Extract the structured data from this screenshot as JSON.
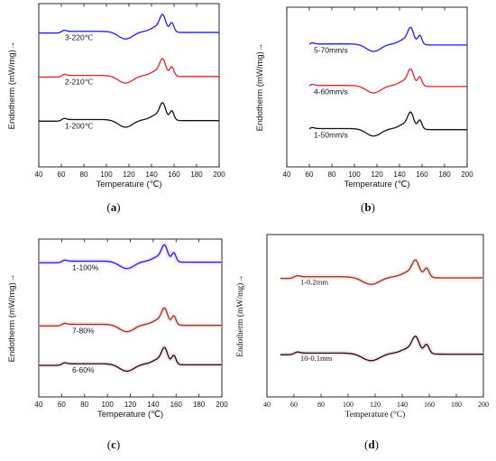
{
  "chart_data": [
    {
      "id": "a",
      "type": "line",
      "caption_letter": "a",
      "xlabel": "Temperature (℃)",
      "ylabel": "Endotherm (mW/mg)→",
      "xlim": [
        40,
        200
      ],
      "xticks": [
        "40",
        "60",
        "80",
        "100",
        "120",
        "140",
        "160",
        "180",
        "200"
      ],
      "grid": false,
      "series": [
        {
          "name": "3-220℃",
          "color": "#1a1aff",
          "baseline": 0.18,
          "x_start": 40,
          "x_end": 200
        },
        {
          "name": "2-210℃",
          "color": "#e8202a",
          "baseline": 0.45,
          "x_start": 40,
          "x_end": 200
        },
        {
          "name": "1-200℃",
          "color": "#111111",
          "baseline": 0.72,
          "x_start": 40,
          "x_end": 200
        }
      ]
    },
    {
      "id": "b",
      "type": "line",
      "caption_letter": "b",
      "xlabel": "Temperature (℃)",
      "ylabel": "Endotherm (mW/mg)→",
      "xlim": [
        40,
        200
      ],
      "xticks": [
        "40",
        "60",
        "80",
        "100",
        "120",
        "140",
        "160",
        "180",
        "200"
      ],
      "grid": false,
      "series": [
        {
          "name": "5-70mm/s",
          "color": "#1a1aff",
          "baseline": 0.24,
          "x_start": 60,
          "x_end": 200
        },
        {
          "name": "4-60mm/s",
          "color": "#e8202a",
          "baseline": 0.5,
          "x_start": 60,
          "x_end": 200
        },
        {
          "name": "1-50mm/s",
          "color": "#111111",
          "baseline": 0.77,
          "x_start": 60,
          "x_end": 200
        }
      ]
    },
    {
      "id": "c",
      "type": "line",
      "caption_letter": "c",
      "xlabel": "Temperature (℃)",
      "ylabel": "Endotherm (mW/mg)→",
      "xlim": [
        40,
        200
      ],
      "xticks": [
        "40",
        "60",
        "80",
        "100",
        "120",
        "140",
        "160",
        "180",
        "200"
      ],
      "grid": false,
      "series": [
        {
          "name": "1-100%",
          "color": "#1a1aff",
          "baseline": 0.15,
          "x_start": 40,
          "x_end": 200
        },
        {
          "name": "7-80%",
          "color": "#8b3a12",
          "baseline": 0.55,
          "x_start": 40,
          "x_end": 200
        },
        {
          "name": "6-60%",
          "color": "#111111",
          "baseline": 0.8,
          "x_start": 40,
          "x_end": 200
        }
      ]
    },
    {
      "id": "d",
      "type": "line",
      "caption_letter": "d",
      "xlabel": "Temperature (°C)",
      "ylabel": "Endotherm (mW/mg)→",
      "xlim": [
        40,
        200
      ],
      "xticks": [
        "40",
        "60",
        "80",
        "100",
        "120",
        "140",
        "160",
        "180",
        "200"
      ],
      "grid": false,
      "series": [
        {
          "name": "1-0.2mm",
          "color": "#8b3a12",
          "baseline": 0.27,
          "x_start": 50,
          "x_end": 200
        },
        {
          "name": "10-0.1mm",
          "color": "#111111",
          "baseline": 0.74,
          "x_start": 50,
          "x_end": 200
        }
      ]
    }
  ]
}
